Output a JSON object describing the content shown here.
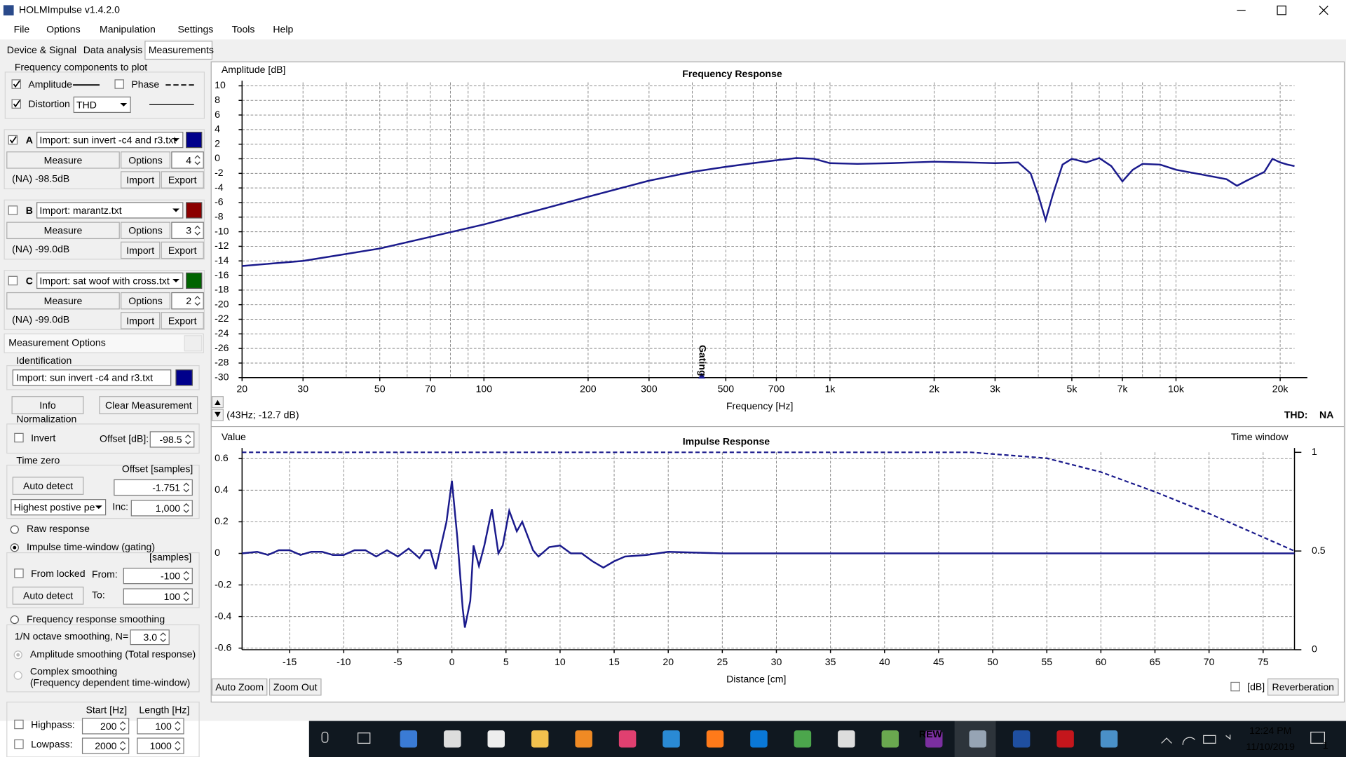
{
  "window": {
    "title": "HOLMImpulse  v1.4.2.0"
  },
  "menu": [
    "File",
    "Options",
    "Manipulation",
    "Settings",
    "Tools",
    "Help"
  ],
  "tabs": [
    "Device & Signal",
    "Data analysis",
    "Measurements"
  ],
  "plot_components": {
    "title": "Frequency components to plot",
    "amplitude": "Amplitude",
    "phase": "Phase",
    "distortion": "Distortion",
    "distortion_type": "THD"
  },
  "measurement_buttons": {
    "measure": "Measure",
    "options": "Options",
    "import": "Import",
    "export": "Export"
  },
  "measurements": [
    {
      "letter": "A",
      "file": "Import: sun invert -c4 and r3.txt",
      "color": "#00008b",
      "options": "4",
      "level": "(NA) -98.5dB",
      "checked": true
    },
    {
      "letter": "B",
      "file": "Import: marantz.txt",
      "color": "#8b0000",
      "options": "3",
      "level": "(NA) -99.0dB",
      "checked": false
    },
    {
      "letter": "C",
      "file": "Import: sat woof with cross.txt",
      "color": "#006400",
      "options": "2",
      "level": "(NA) -99.0dB",
      "checked": false
    }
  ],
  "measurement_options": {
    "title": "Measurement Options",
    "identification": "Identification",
    "file": "Import: sun invert -c4 and r3.txt",
    "info": "Info",
    "clear": "Clear Measurement",
    "normalization": "Normalization",
    "invert": "Invert",
    "offset_db_label": "Offset [dB]:",
    "offset_db": "-98.5",
    "time_zero": "Time zero",
    "offset_samples_label": "Offset [samples]",
    "auto_detect": "Auto detect",
    "offset_samples": "-1.751",
    "peak_mode": "Highest postive pe",
    "inc_label": "Inc:",
    "inc": "1,000",
    "raw_response": "Raw response",
    "gating": "Impulse time-window (gating)",
    "samples": "[samples]",
    "from_locked": "From locked",
    "from_label": "From:",
    "from": "-100",
    "to_label": "To:",
    "to": "100",
    "smoothing": "Frequency response smoothing",
    "octave": "1/N octave smoothing, N=",
    "octave_n": "3.0",
    "amp_smoothing": "Amplitude smoothing (Total response)",
    "complex": "Complex smoothing",
    "complex_note": "(Frequency dependent time-window)",
    "start": "Start [Hz]",
    "length": "Length [Hz]",
    "highpass": "Highpass:",
    "hp_start": "200",
    "hp_length": "100",
    "lowpass": "Lowpass:",
    "lp_start": "2000",
    "lp_length": "1000"
  },
  "chart_data": [
    {
      "type": "line",
      "title": "Frequency Response",
      "ylabel": "Amplitude [dB]",
      "xlabel": "Frequency [Hz]",
      "xscale": "log",
      "grid": true,
      "xlim": [
        20,
        22000
      ],
      "ylim": [
        -30,
        10
      ],
      "xticks": [
        20,
        30,
        50,
        70,
        100,
        200,
        300,
        500,
        700,
        {
          "value": 1000,
          "label": "1k"
        },
        {
          "value": 2000,
          "label": "2k"
        },
        {
          "value": 3000,
          "label": "3k"
        },
        {
          "value": 5000,
          "label": "5k"
        },
        {
          "value": 7000,
          "label": "7k"
        },
        {
          "value": 10000,
          "label": "10k"
        },
        {
          "value": 20000,
          "label": "20k"
        }
      ],
      "x_grid": [
        20,
        30,
        40,
        50,
        60,
        70,
        80,
        90,
        100,
        200,
        300,
        400,
        500,
        600,
        700,
        800,
        900,
        1000,
        2000,
        3000,
        4000,
        5000,
        6000,
        7000,
        8000,
        9000,
        10000,
        20000
      ],
      "yticks": [
        -30,
        -28,
        -26,
        -24,
        -22,
        -20,
        -18,
        -16,
        -14,
        -12,
        -10,
        -8,
        -6,
        -4,
        -2,
        0,
        2,
        4,
        6,
        8,
        10
      ],
      "cursor": "(43Hz; -12.7 dB)",
      "annotation": "Gating",
      "annotation_x": 426,
      "thd_label": "THD:",
      "thd_value": "NA",
      "series": [
        {
          "color": "#1a1a8c",
          "x": [
            20,
            30,
            50,
            70,
            100,
            150,
            200,
            300,
            400,
            500,
            600,
            700,
            800,
            900,
            1000,
            1200,
            1500,
            2000,
            2500,
            3000,
            3500,
            3800,
            4000,
            4200,
            4400,
            4700,
            5000,
            5500,
            6000,
            6500,
            7000,
            7500,
            8000,
            9000,
            10000,
            12000,
            14000,
            15000,
            16000,
            18000,
            19000,
            20000,
            21000,
            22000
          ],
          "values": [
            -14.7,
            -14.0,
            -12.3,
            -10.7,
            -9.0,
            -6.8,
            -5.2,
            -3.0,
            -1.8,
            -1.1,
            -0.6,
            -0.2,
            0.1,
            0,
            -0.6,
            -0.7,
            -0.6,
            -0.4,
            -0.5,
            -0.6,
            -0.5,
            -2,
            -5,
            -8.4,
            -5,
            -0.8,
            0,
            -0.5,
            0.1,
            -1,
            -3.1,
            -1.5,
            -0.7,
            -0.8,
            -1.5,
            -2.2,
            -2.8,
            -3.7,
            -3,
            -1.8,
            0,
            -0.5,
            -0.8,
            -1.0
          ]
        }
      ]
    },
    {
      "type": "line",
      "title": "Impulse Response",
      "ylabel": "Value",
      "y2label": "Time window",
      "xlabel": "Distance [cm]",
      "grid": true,
      "xlim": [
        -19.4,
        77.9
      ],
      "ylim": [
        -0.61,
        0.64
      ],
      "y2lim": [
        0,
        1
      ],
      "xticks": [
        -15,
        -10,
        -5,
        0,
        5,
        10,
        15,
        20,
        25,
        30,
        35,
        40,
        45,
        50,
        55,
        60,
        65,
        70,
        75
      ],
      "yticks": [
        -0.6,
        -0.4,
        -0.2,
        0,
        0.2,
        0.4,
        0.6
      ],
      "y2ticks": [
        0,
        0.5,
        1
      ],
      "series": [
        {
          "color": "#1a1a8c",
          "x": [
            -19.4,
            -18,
            -17,
            -16,
            -15,
            -14,
            -13,
            -12,
            -11,
            -10,
            -9,
            -8,
            -7,
            -6,
            -5,
            -4,
            -3,
            -2.5,
            -2,
            -1.5,
            -1,
            -0.5,
            0,
            0.5,
            1,
            1.2,
            1.7,
            2,
            2.5,
            3,
            3.7,
            4.3,
            4.7,
            5.3,
            6,
            6.5,
            7.5,
            8,
            9,
            10,
            11,
            12,
            13,
            14,
            15,
            16,
            18,
            20,
            25,
            30,
            35,
            40,
            45,
            50,
            55,
            60,
            65,
            70,
            75,
            77.9
          ],
          "values": [
            0,
            0.01,
            -0.01,
            0.02,
            0.02,
            -0.01,
            0.01,
            0.01,
            -0.01,
            -0.01,
            0.02,
            0.02,
            -0.02,
            0.02,
            -0.02,
            0.03,
            -0.03,
            0.02,
            0.02,
            -0.1,
            0.05,
            0.2,
            0.46,
            0.1,
            -0.35,
            -0.47,
            -0.3,
            0.05,
            -0.08,
            0.05,
            0.28,
            0,
            0.05,
            0.27,
            0.14,
            0.2,
            0.02,
            -0.02,
            0.04,
            0.05,
            0,
            0,
            -0.05,
            -0.09,
            -0.05,
            -0.02,
            -0.01,
            0.01,
            0,
            0,
            0,
            0,
            0,
            0,
            0,
            0,
            0,
            0,
            0,
            0
          ]
        },
        {
          "color": "#1a1a8c",
          "dash": true,
          "axis": "y2",
          "x": [
            -19.4,
            48,
            55,
            60,
            65,
            70,
            75,
            77.9
          ],
          "values": [
            1,
            1,
            0.97,
            0.9,
            0.8,
            0.69,
            0.57,
            0.5
          ]
        }
      ]
    }
  ],
  "plot_controls": {
    "auto_zoom": "Auto Zoom",
    "zoom_out": "Zoom Out",
    "db": "[dB]",
    "reverberation": "Reverberation"
  },
  "taskbar": {
    "rew": "REW",
    "time": "12:24 PM",
    "date": "11/10/2019",
    "notifications": "1"
  }
}
